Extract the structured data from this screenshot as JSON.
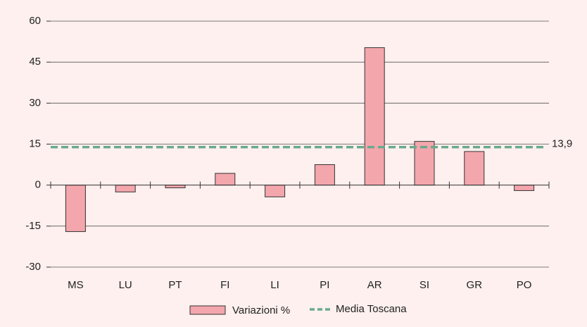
{
  "chart_data": {
    "type": "bar",
    "categories": [
      "MS",
      "LU",
      "PT",
      "FI",
      "LI",
      "PI",
      "AR",
      "SI",
      "GR",
      "PO"
    ],
    "series": [
      {
        "name": "Variazioni %",
        "color": "#f4a6ad",
        "values": [
          -17,
          -2.5,
          -1,
          4.3,
          -4.3,
          7.5,
          50.3,
          16,
          12.3,
          -2
        ]
      }
    ],
    "reference_line": {
      "name": "Media Toscana",
      "value": 13.9,
      "label": "13,9",
      "color": "#6aaa8c"
    },
    "ylim": [
      -30,
      60
    ],
    "yticks": [
      -30,
      -15,
      0,
      15,
      30,
      45,
      60
    ],
    "grid": true
  }
}
